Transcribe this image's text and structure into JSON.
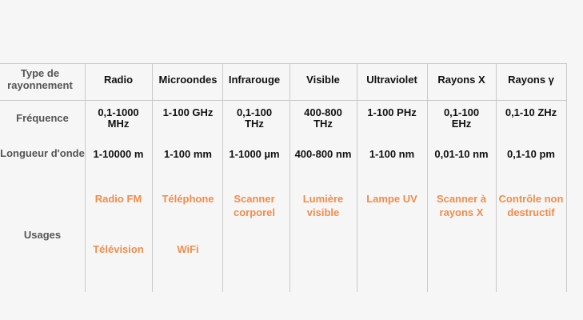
{
  "row_headers": {
    "type": "Type de rayonnement",
    "frequency": "Fréquence",
    "wavelength": "Longueur d'onde",
    "usages": "Usages"
  },
  "columns": [
    {
      "name": "Radio",
      "frequency": "0,1-1000 MHz",
      "wavelength": "1-10000 m",
      "usages": [
        "Radio FM",
        "Télévision"
      ],
      "icons": [
        "radio-icon",
        "television-icon"
      ],
      "wave_cycles": 2
    },
    {
      "name": "Microondes",
      "frequency": "1-100 GHz",
      "wavelength": "1-100 mm",
      "usages": [
        "Téléphone",
        "WiFi"
      ],
      "icons": [
        "phone-icon",
        "wifi-icon"
      ],
      "wave_cycles": 0
    },
    {
      "name": "Infrarouge",
      "frequency": "0,1-100 THz",
      "wavelength": "1-1000 µm",
      "usages": [
        "Scanner corporel"
      ],
      "icons": [
        "body-scanner-icon"
      ],
      "wave_cycles": 5
    },
    {
      "name": "Visible",
      "frequency": "400-800 THz",
      "wavelength": "400-800 nm",
      "usages": [
        "Lumière visible"
      ],
      "icons": [
        "eye-icon"
      ],
      "wave_cycles": 0
    },
    {
      "name": "Ultraviolet",
      "frequency": "1-100 PHz",
      "wavelength": "1-100 nm",
      "usages": [
        "Lampe UV"
      ],
      "icons": [
        "uv-lamp-icon"
      ],
      "wave_cycles": 7
    },
    {
      "name": "Rayons X",
      "frequency": "0,1-100 EHz",
      "wavelength": "0,01-10 nm",
      "usages": [
        "Scanner à rayons X"
      ],
      "icons": [
        "xray-scanner-icon"
      ],
      "wave_cycles": 0
    },
    {
      "name": "Rayons γ",
      "frequency": "0,1-10 ZHz",
      "wavelength": "0,1-10 pm",
      "usages": [
        "Contrôle non destructif"
      ],
      "icons": [
        "gamma-inspection-icon"
      ],
      "wave_cycles": 14
    }
  ],
  "colors": {
    "accent": "#f28c4a",
    "header_text": "#555555",
    "dark": "#2b2b2b",
    "grid": "#c9c9c9",
    "background": "#f6f6f6"
  }
}
